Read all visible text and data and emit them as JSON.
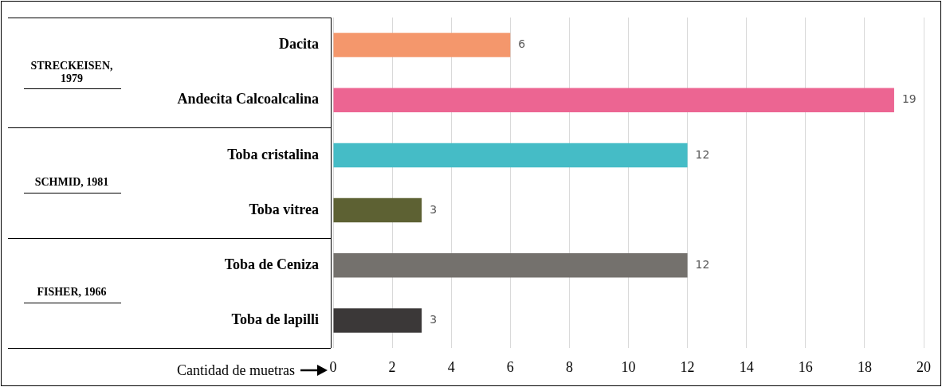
{
  "chart_data": {
    "type": "bar",
    "orientation": "horizontal",
    "xlabel": "Cantidad de muetras",
    "categories": [
      "Dacita",
      "Andecita Calcoalcalina",
      "Toba cristalina",
      "Toba vitrea",
      "Toba de Ceniza",
      "Toba de lapilli"
    ],
    "values": [
      6,
      19,
      12,
      3,
      12,
      3
    ],
    "colors": [
      "#f4976c",
      "#ec6592",
      "#45bcc6",
      "#5d6133",
      "#74716d",
      "#3b3838"
    ],
    "xlim": [
      0,
      20
    ],
    "xticks": [
      0,
      2,
      4,
      6,
      8,
      10,
      12,
      14,
      16,
      18,
      20
    ],
    "grid": "x",
    "data_labels": true,
    "legend": false,
    "annotations": [
      "STRECKEISEN, 1979",
      "SCHMID, 1981",
      "FISHER, 1966"
    ]
  }
}
